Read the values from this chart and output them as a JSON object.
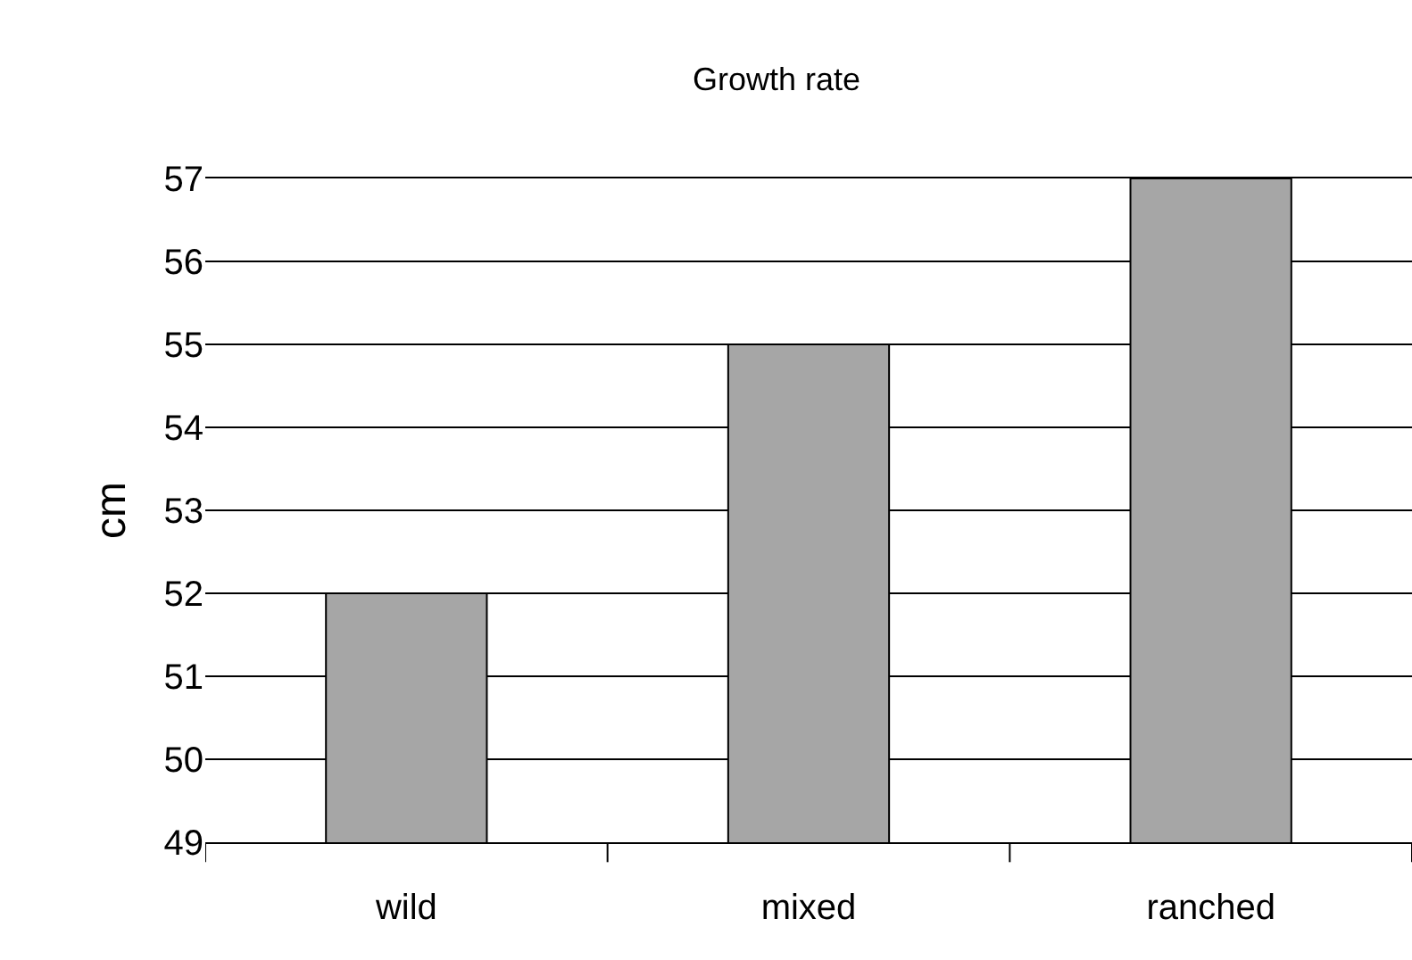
{
  "chart_data": {
    "type": "bar",
    "title": "Growth rate",
    "ylabel": "cm",
    "categories": [
      "wild",
      "mixed",
      "ranched"
    ],
    "values": [
      52,
      55,
      57
    ],
    "color": "#a6a6a6",
    "ylim": [
      49,
      57
    ],
    "yticks": [
      49,
      50,
      51,
      52,
      53,
      54,
      55,
      56,
      57
    ],
    "grid": "y"
  }
}
